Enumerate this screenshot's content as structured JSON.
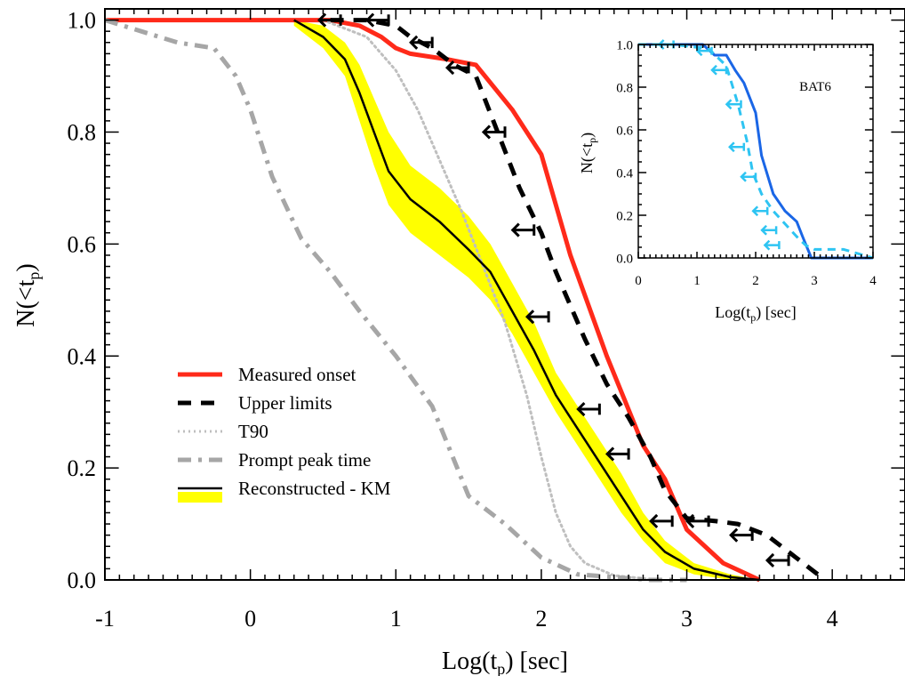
{
  "chart_data": [
    {
      "type": "line",
      "title": "",
      "xlabel": "Log(t",
      "xlabel_sub": "p",
      "xlabel_suffix": ") [sec]",
      "ylabel": "N(<t",
      "ylabel_sub": "p",
      "ylabel_suffix": ")",
      "xlim": [
        -1,
        4.5
      ],
      "ylim": [
        0.0,
        1.02
      ],
      "xticks": [
        -1,
        0,
        1,
        2,
        3,
        4
      ],
      "yticks": [
        0.0,
        0.2,
        0.4,
        0.6,
        0.8,
        1.0
      ],
      "ytick_labels": [
        "0.0",
        "0.2",
        "0.4",
        "0.6",
        "0.8",
        "1.0"
      ],
      "legend_position": "lower-left",
      "series": [
        {
          "name": "Measured onset",
          "color": "#ff2a1a",
          "style": "solid",
          "width": 5,
          "x": [
            -1.0,
            0.2,
            0.55,
            0.75,
            0.9,
            1.0,
            1.1,
            1.35,
            1.55,
            1.8,
            2.0,
            2.2,
            2.45,
            2.7,
            2.85,
            3.0,
            3.25,
            3.5
          ],
          "y": [
            1.0,
            1.0,
            1.0,
            0.99,
            0.97,
            0.95,
            0.94,
            0.93,
            0.92,
            0.84,
            0.76,
            0.58,
            0.4,
            0.24,
            0.18,
            0.09,
            0.03,
            0.0
          ]
        },
        {
          "name": "Upper limits",
          "color": "#000000",
          "style": "dashed",
          "width": 5,
          "x": [
            0.55,
            0.8,
            1.0,
            1.1,
            1.25,
            1.4,
            1.55,
            1.7,
            1.85,
            2.0,
            2.1,
            2.3,
            2.45,
            2.6,
            2.75,
            2.85,
            3.0,
            3.2,
            3.35,
            3.55,
            3.75,
            3.95
          ],
          "y": [
            1.0,
            1.0,
            0.99,
            0.97,
            0.95,
            0.92,
            0.9,
            0.8,
            0.7,
            0.62,
            0.55,
            0.43,
            0.35,
            0.29,
            0.22,
            0.16,
            0.11,
            0.105,
            0.1,
            0.08,
            0.04,
            0.0
          ]
        },
        {
          "name": "T90",
          "color": "#bfbfbf",
          "style": "dotted",
          "width": 3,
          "x": [
            0.5,
            0.8,
            1.0,
            1.15,
            1.3,
            1.45,
            1.6,
            1.75,
            1.9,
            2.0,
            2.1,
            2.2,
            2.3,
            2.5,
            2.8
          ],
          "y": [
            1.0,
            0.97,
            0.91,
            0.84,
            0.75,
            0.66,
            0.56,
            0.46,
            0.33,
            0.22,
            0.12,
            0.06,
            0.03,
            0.008,
            0.0
          ]
        },
        {
          "name": "Prompt peak time",
          "color": "#a6a6a6",
          "style": "dashdot",
          "width": 5,
          "x": [
            -1.0,
            -0.75,
            -0.5,
            -0.25,
            -0.1,
            0.0,
            0.15,
            0.35,
            0.55,
            0.75,
            1.0,
            1.25,
            1.5,
            1.75,
            2.0,
            2.25,
            2.5,
            2.75,
            3.0
          ],
          "y": [
            1.0,
            0.98,
            0.96,
            0.95,
            0.9,
            0.84,
            0.72,
            0.61,
            0.55,
            0.48,
            0.4,
            0.31,
            0.15,
            0.1,
            0.04,
            0.01,
            0.005,
            0.0,
            0.0
          ]
        },
        {
          "name": "Reconstructed - KM",
          "color": "#000000",
          "band_color": "#ffff00",
          "style": "solid",
          "width": 2.5,
          "x": [
            0.3,
            0.5,
            0.65,
            0.75,
            0.85,
            0.95,
            1.1,
            1.3,
            1.5,
            1.65,
            1.8,
            1.95,
            2.1,
            2.25,
            2.4,
            2.55,
            2.7,
            2.85,
            3.05,
            3.3,
            3.5
          ],
          "y": [
            1.0,
            0.97,
            0.93,
            0.87,
            0.8,
            0.73,
            0.68,
            0.64,
            0.59,
            0.55,
            0.48,
            0.41,
            0.33,
            0.27,
            0.21,
            0.15,
            0.09,
            0.05,
            0.02,
            0.005,
            0.0
          ],
          "y_low": [
            0.99,
            0.95,
            0.9,
            0.82,
            0.74,
            0.67,
            0.62,
            0.58,
            0.54,
            0.5,
            0.44,
            0.37,
            0.3,
            0.24,
            0.18,
            0.12,
            0.07,
            0.03,
            0.01,
            0.0,
            0.0
          ],
          "y_high": [
            1.0,
            0.99,
            0.96,
            0.92,
            0.86,
            0.8,
            0.74,
            0.7,
            0.65,
            0.6,
            0.53,
            0.46,
            0.37,
            0.31,
            0.25,
            0.19,
            0.12,
            0.07,
            0.03,
            0.01,
            0.0
          ]
        }
      ],
      "upper_limit_markers": [
        {
          "x": 0.62,
          "y": 1.0
        },
        {
          "x": 0.95,
          "y": 1.0
        },
        {
          "x": 1.25,
          "y": 0.96
        },
        {
          "x": 1.5,
          "y": 0.915
        },
        {
          "x": 1.75,
          "y": 0.8
        },
        {
          "x": 1.95,
          "y": 0.625
        },
        {
          "x": 2.05,
          "y": 0.47
        },
        {
          "x": 2.4,
          "y": 0.305
        },
        {
          "x": 2.6,
          "y": 0.225
        },
        {
          "x": 2.9,
          "y": 0.105
        },
        {
          "x": 3.15,
          "y": 0.105
        },
        {
          "x": 3.45,
          "y": 0.08
        },
        {
          "x": 3.7,
          "y": 0.035
        }
      ]
    },
    {
      "type": "line",
      "title": "BAT6",
      "xlabel": "Log(t",
      "xlabel_sub": "p",
      "xlabel_suffix": ") [sec]",
      "ylabel": "N(<t",
      "ylabel_sub": "p",
      "ylabel_suffix": ")",
      "xlim": [
        0,
        4
      ],
      "ylim": [
        0.0,
        1.0
      ],
      "xticks": [
        0,
        1,
        2,
        3,
        4
      ],
      "yticks": [
        0.0,
        0.2,
        0.4,
        0.6,
        0.8,
        1.0
      ],
      "ytick_labels": [
        "0.0",
        "0.2",
        "0.4",
        "0.6",
        "0.8",
        "1.0"
      ],
      "series": [
        {
          "name": "Measured onset",
          "color": "#1a66e6",
          "style": "solid",
          "width": 3,
          "x": [
            0,
            1.1,
            1.3,
            1.5,
            1.65,
            1.8,
            2.0,
            2.1,
            2.3,
            2.5,
            2.7,
            2.8,
            2.95,
            3.0,
            4.0
          ],
          "y": [
            1.0,
            1.0,
            0.95,
            0.95,
            0.88,
            0.82,
            0.68,
            0.48,
            0.3,
            0.22,
            0.17,
            0.1,
            0.0,
            0.0,
            0.0
          ]
        },
        {
          "name": "Upper limits",
          "color": "#2ec4f2",
          "style": "dashed",
          "width": 3,
          "x": [
            0,
            0.6,
            1.2,
            1.5,
            1.7,
            1.85,
            1.95,
            2.1,
            2.3,
            2.5,
            2.7,
            2.85,
            3.0,
            3.5,
            4.0
          ],
          "y": [
            1.0,
            1.0,
            0.98,
            0.9,
            0.72,
            0.55,
            0.4,
            0.3,
            0.22,
            0.16,
            0.1,
            0.06,
            0.04,
            0.04,
            0.0
          ]
        }
      ],
      "upper_limit_markers": [
        {
          "x": 0.6,
          "y": 1.0
        },
        {
          "x": 1.25,
          "y": 0.97
        },
        {
          "x": 1.5,
          "y": 0.88
        },
        {
          "x": 1.75,
          "y": 0.72
        },
        {
          "x": 1.8,
          "y": 0.52
        },
        {
          "x": 2.0,
          "y": 0.38
        },
        {
          "x": 2.2,
          "y": 0.22
        },
        {
          "x": 2.35,
          "y": 0.13
        },
        {
          "x": 2.4,
          "y": 0.06
        }
      ]
    }
  ]
}
